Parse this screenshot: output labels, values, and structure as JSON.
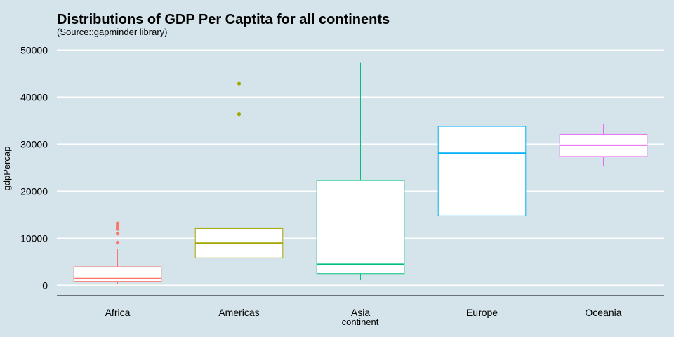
{
  "chart_data": {
    "type": "boxplot",
    "title": "Distributions of GDP Per Captita for all continents",
    "subtitle": "(Source::gapminder library)",
    "xlabel": "continent",
    "ylabel": "gdpPercap",
    "ylim": [
      -2000,
      51000
    ],
    "yticks": [
      0,
      10000,
      20000,
      30000,
      40000,
      50000
    ],
    "grid": "horizontal",
    "legend": "none",
    "categories": [
      "Africa",
      "Americas",
      "Asia",
      "Europe",
      "Oceania"
    ],
    "boxes": [
      {
        "category": "Africa",
        "color": "#f8766d",
        "whisker_low": 280,
        "q1": 870,
        "median": 1450,
        "q3": 3950,
        "whisker_high": 7700,
        "outliers": [
          9100,
          11000,
          12000,
          12400,
          12700,
          13200
        ]
      },
      {
        "category": "Americas",
        "color": "#a3a500",
        "whisker_low": 1200,
        "q1": 5850,
        "median": 9000,
        "q3": 12100,
        "whisker_high": 19400,
        "outliers": [
          36400,
          42900
        ]
      },
      {
        "category": "Asia",
        "color": "#00bf7d",
        "whisker_low": 1100,
        "q1": 2500,
        "median": 4500,
        "q3": 22300,
        "whisker_high": 47300,
        "outliers": []
      },
      {
        "category": "Europe",
        "color": "#00b0f6",
        "whisker_low": 6000,
        "q1": 14800,
        "median": 28100,
        "q3": 33800,
        "whisker_high": 49400,
        "outliers": []
      },
      {
        "category": "Oceania",
        "color": "#e76bf3",
        "whisker_low": 25300,
        "q1": 27400,
        "median": 29800,
        "q3": 32100,
        "whisker_high": 34400,
        "outliers": []
      }
    ]
  }
}
